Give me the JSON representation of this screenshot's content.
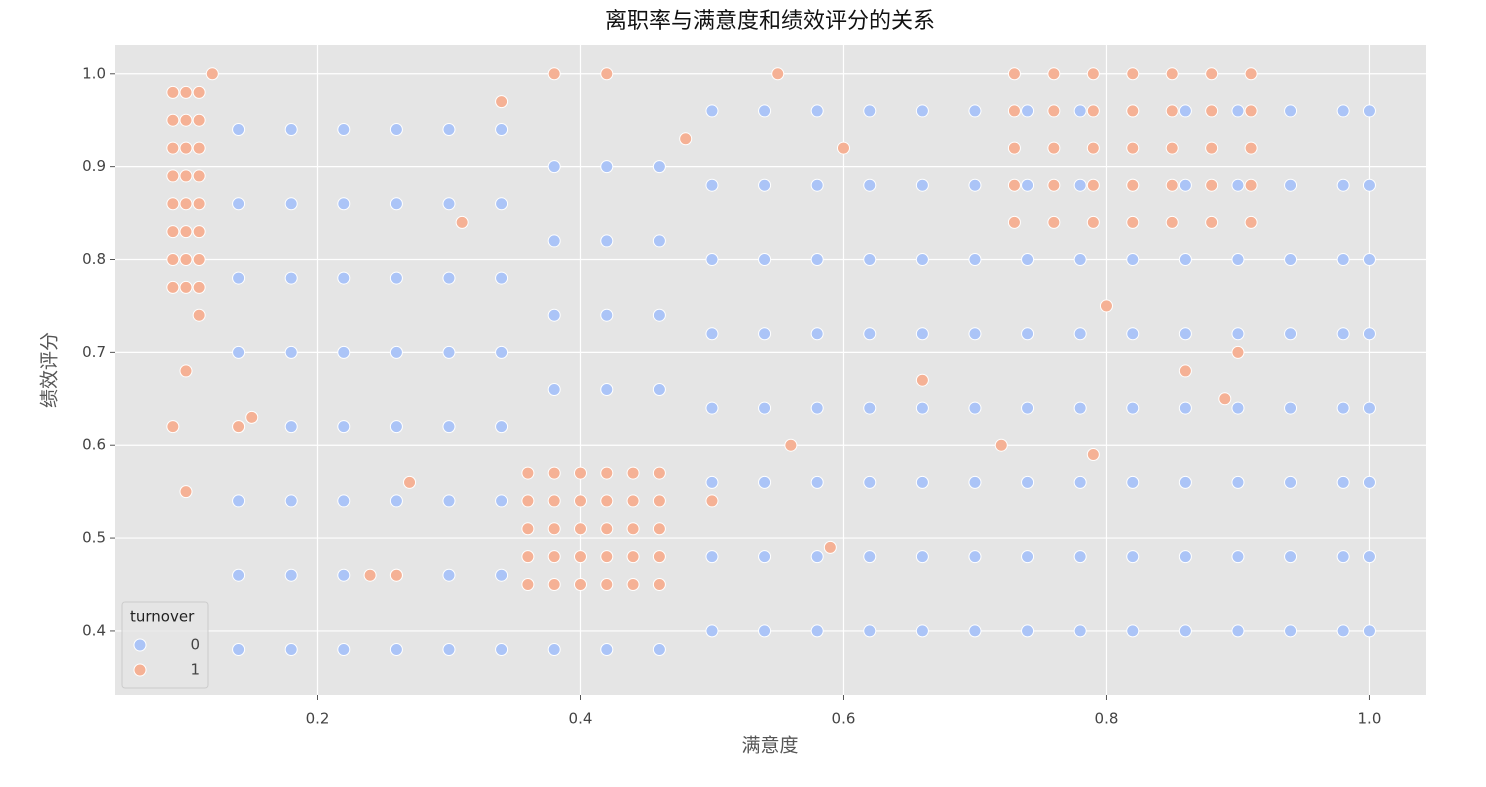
{
  "chart_data": {
    "type": "scatter",
    "title": "离职率与满意度和绩效评分的关系",
    "x_label": "满意度",
    "y_label": "绩效评分",
    "xlim": [
      0.046,
      1.043
    ],
    "ylim": [
      0.331,
      1.031
    ],
    "xticks": [
      0.2,
      0.4,
      0.6,
      0.8,
      {
        "value": 1.0,
        "label": "1.0"
      }
    ],
    "yticks": [
      0.4,
      0.5,
      0.6,
      0.7,
      0.8,
      0.9,
      {
        "value": 1.0,
        "label": "1.0"
      }
    ],
    "grid": true,
    "legend_title": "turnover",
    "legend_position": "lower left",
    "series": [
      {
        "name": "0",
        "color": "#abc4f7",
        "x": [
          0.14,
          0.14,
          0.14,
          0.14,
          0.14,
          0.14,
          0.14,
          0.14,
          0.18,
          0.18,
          0.18,
          0.18,
          0.18,
          0.18,
          0.18,
          0.18,
          0.22,
          0.22,
          0.22,
          0.22,
          0.22,
          0.22,
          0.22,
          0.22,
          0.26,
          0.26,
          0.26,
          0.26,
          0.26,
          0.26,
          0.26,
          0.26,
          0.3,
          0.3,
          0.3,
          0.3,
          0.3,
          0.3,
          0.3,
          0.3,
          0.34,
          0.34,
          0.34,
          0.34,
          0.34,
          0.34,
          0.34,
          0.34,
          0.38,
          0.38,
          0.38,
          0.38,
          0.38,
          0.42,
          0.42,
          0.42,
          0.42,
          0.42,
          0.46,
          0.46,
          0.46,
          0.46,
          0.46,
          0.5,
          0.5,
          0.5,
          0.5,
          0.5,
          0.5,
          0.5,
          0.5,
          0.54,
          0.54,
          0.54,
          0.54,
          0.54,
          0.54,
          0.54,
          0.54,
          0.58,
          0.58,
          0.58,
          0.58,
          0.58,
          0.58,
          0.58,
          0.58,
          0.62,
          0.62,
          0.62,
          0.62,
          0.62,
          0.62,
          0.62,
          0.62,
          0.66,
          0.66,
          0.66,
          0.66,
          0.66,
          0.66,
          0.66,
          0.66,
          0.7,
          0.7,
          0.7,
          0.7,
          0.7,
          0.7,
          0.7,
          0.7,
          0.74,
          0.74,
          0.74,
          0.74,
          0.74,
          0.74,
          0.74,
          0.74,
          0.78,
          0.78,
          0.78,
          0.78,
          0.78,
          0.78,
          0.78,
          0.78,
          0.82,
          0.82,
          0.82,
          0.82,
          0.82,
          0.82,
          0.82,
          0.82,
          0.86,
          0.86,
          0.86,
          0.86,
          0.86,
          0.86,
          0.86,
          0.86,
          0.9,
          0.9,
          0.9,
          0.9,
          0.9,
          0.9,
          0.9,
          0.9,
          0.94,
          0.94,
          0.94,
          0.94,
          0.94,
          0.94,
          0.94,
          0.94,
          0.98,
          0.98,
          0.98,
          0.98,
          0.98,
          0.98,
          0.98,
          0.98,
          1.0,
          1.0,
          1.0,
          1.0,
          1.0,
          1.0,
          1.0,
          1.0
        ],
        "values": [
          0.38,
          0.46,
          0.54,
          0.62,
          0.7,
          0.78,
          0.86,
          0.94,
          0.38,
          0.46,
          0.54,
          0.62,
          0.7,
          0.78,
          0.86,
          0.94,
          0.38,
          0.46,
          0.54,
          0.62,
          0.7,
          0.78,
          0.86,
          0.94,
          0.38,
          0.46,
          0.54,
          0.62,
          0.7,
          0.78,
          0.86,
          0.94,
          0.38,
          0.46,
          0.54,
          0.62,
          0.7,
          0.78,
          0.86,
          0.94,
          0.38,
          0.46,
          0.54,
          0.62,
          0.7,
          0.78,
          0.86,
          0.94,
          0.38,
          0.66,
          0.74,
          0.82,
          0.9,
          0.38,
          0.66,
          0.74,
          0.82,
          0.9,
          0.38,
          0.66,
          0.74,
          0.82,
          0.9,
          0.4,
          0.48,
          0.56,
          0.64,
          0.72,
          0.8,
          0.88,
          0.96,
          0.4,
          0.48,
          0.56,
          0.64,
          0.72,
          0.8,
          0.88,
          0.96,
          0.4,
          0.48,
          0.56,
          0.64,
          0.72,
          0.8,
          0.88,
          0.96,
          0.4,
          0.48,
          0.56,
          0.64,
          0.72,
          0.8,
          0.88,
          0.96,
          0.4,
          0.48,
          0.56,
          0.64,
          0.72,
          0.8,
          0.88,
          0.96,
          0.4,
          0.48,
          0.56,
          0.64,
          0.72,
          0.8,
          0.88,
          0.96,
          0.4,
          0.48,
          0.56,
          0.64,
          0.72,
          0.8,
          0.88,
          0.96,
          0.4,
          0.48,
          0.56,
          0.64,
          0.72,
          0.8,
          0.88,
          0.96,
          0.4,
          0.48,
          0.56,
          0.64,
          0.72,
          0.8,
          0.88,
          0.96,
          0.4,
          0.48,
          0.56,
          0.64,
          0.72,
          0.8,
          0.88,
          0.96,
          0.4,
          0.48,
          0.56,
          0.64,
          0.72,
          0.8,
          0.88,
          0.96,
          0.4,
          0.48,
          0.56,
          0.64,
          0.72,
          0.8,
          0.88,
          0.96,
          0.4,
          0.48,
          0.56,
          0.64,
          0.72,
          0.8,
          0.88,
          0.96,
          0.4,
          0.48,
          0.56,
          0.64,
          0.72,
          0.8,
          0.88,
          0.96
        ]
      },
      {
        "name": "1",
        "color": "#f5b195",
        "x": [
          0.09,
          0.09,
          0.09,
          0.09,
          0.09,
          0.09,
          0.09,
          0.09,
          0.1,
          0.1,
          0.1,
          0.1,
          0.1,
          0.1,
          0.1,
          0.1,
          0.11,
          0.11,
          0.11,
          0.11,
          0.11,
          0.11,
          0.11,
          0.11,
          0.36,
          0.36,
          0.36,
          0.36,
          0.36,
          0.38,
          0.38,
          0.38,
          0.38,
          0.38,
          0.4,
          0.4,
          0.4,
          0.4,
          0.4,
          0.42,
          0.42,
          0.42,
          0.42,
          0.42,
          0.44,
          0.44,
          0.44,
          0.44,
          0.44,
          0.46,
          0.46,
          0.46,
          0.46,
          0.46,
          0.73,
          0.73,
          0.73,
          0.73,
          0.73,
          0.76,
          0.76,
          0.76,
          0.76,
          0.76,
          0.79,
          0.79,
          0.79,
          0.79,
          0.79,
          0.82,
          0.82,
          0.82,
          0.82,
          0.82,
          0.85,
          0.85,
          0.85,
          0.85,
          0.85,
          0.88,
          0.88,
          0.88,
          0.88,
          0.88,
          0.91,
          0.91,
          0.91,
          0.91,
          0.91,
          0.09,
          0.1,
          0.1,
          0.11,
          0.12,
          0.14,
          0.15,
          0.24,
          0.26,
          0.27,
          0.31,
          0.34,
          0.38,
          0.42,
          0.48,
          0.5,
          0.55,
          0.56,
          0.59,
          0.6,
          0.66,
          0.72,
          0.79,
          0.8,
          0.86,
          0.89,
          0.9
        ],
        "values": [
          0.77,
          0.8,
          0.83,
          0.86,
          0.89,
          0.92,
          0.95,
          0.98,
          0.77,
          0.8,
          0.83,
          0.86,
          0.89,
          0.92,
          0.95,
          0.98,
          0.77,
          0.8,
          0.83,
          0.86,
          0.89,
          0.92,
          0.95,
          0.98,
          0.45,
          0.48,
          0.51,
          0.54,
          0.57,
          0.45,
          0.48,
          0.51,
          0.54,
          0.57,
          0.45,
          0.48,
          0.51,
          0.54,
          0.57,
          0.45,
          0.48,
          0.51,
          0.54,
          0.57,
          0.45,
          0.48,
          0.51,
          0.54,
          0.57,
          0.45,
          0.48,
          0.51,
          0.54,
          0.57,
          0.84,
          0.88,
          0.92,
          0.96,
          1.0,
          0.84,
          0.88,
          0.92,
          0.96,
          1.0,
          0.84,
          0.88,
          0.92,
          0.96,
          1.0,
          0.84,
          0.88,
          0.92,
          0.96,
          1.0,
          0.84,
          0.88,
          0.92,
          0.96,
          1.0,
          0.84,
          0.88,
          0.92,
          0.96,
          1.0,
          0.84,
          0.88,
          0.92,
          0.96,
          1.0,
          0.62,
          0.55,
          0.68,
          0.74,
          1.0,
          0.62,
          0.63,
          0.46,
          0.46,
          0.56,
          0.84,
          0.97,
          1.0,
          1.0,
          0.93,
          0.54,
          1.0,
          0.6,
          0.49,
          0.92,
          0.67,
          0.6,
          0.59,
          0.75,
          0.68,
          0.65,
          0.7
        ]
      }
    ]
  }
}
